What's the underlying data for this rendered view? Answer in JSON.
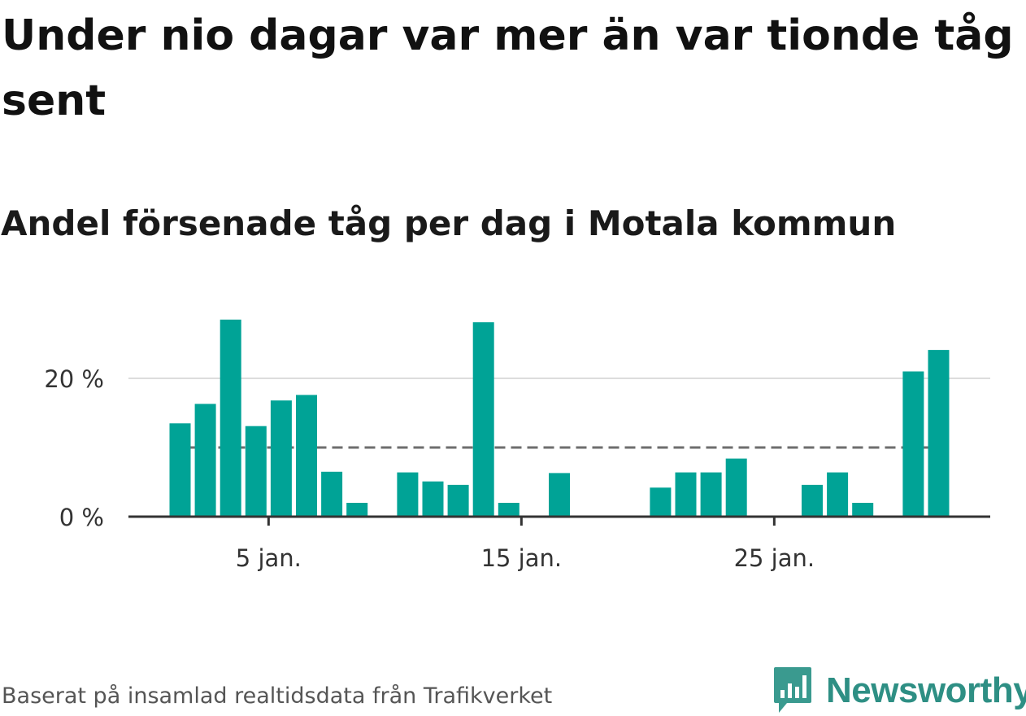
{
  "title": "Under nio dagar var mer än var tionde tåg sent",
  "subtitle": "Andel försenade tåg per dag i Motala kommun",
  "source": "Baserat på insamlad realtidsdata från Trafikverket",
  "logo": {
    "text": "Newsworthy",
    "icon": "newsworthy-chart-icon",
    "color": "#2e8f84"
  },
  "colors": {
    "bar": "#00a396",
    "reference_line": "#6e6e6e",
    "grid": "#dddddd",
    "axis": "#333333"
  },
  "chart_data": {
    "type": "bar",
    "x_unit": "day of January",
    "x": [
      2,
      3,
      4,
      5,
      6,
      7,
      8,
      9,
      10,
      11,
      12,
      13,
      14,
      15,
      16,
      17,
      18,
      19,
      20,
      21,
      22,
      23,
      24,
      25,
      26,
      27,
      28,
      29,
      30,
      31,
      32
    ],
    "values": [
      13.5,
      16.3,
      28.5,
      13.1,
      16.8,
      17.6,
      6.5,
      2.0,
      null,
      6.4,
      5.1,
      4.6,
      28.1,
      2.0,
      null,
      6.3,
      null,
      null,
      null,
      4.2,
      6.4,
      6.4,
      8.4,
      null,
      null,
      4.6,
      6.4,
      2.0,
      null,
      21.0,
      24.1
    ],
    "x_ticks": [
      {
        "value": 6,
        "label": "5 jan."
      },
      {
        "value": 16,
        "label": "15 jan."
      },
      {
        "value": 26,
        "label": "25 jan."
      }
    ],
    "y_ticks": [
      {
        "value": 0,
        "label": "0 %"
      },
      {
        "value": 20,
        "label": "20 %"
      }
    ],
    "ylim": [
      0,
      30
    ],
    "reference_line": 10,
    "grid": true
  }
}
